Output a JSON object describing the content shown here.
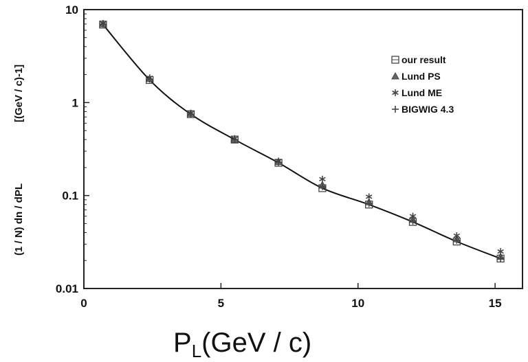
{
  "chart_data": {
    "type": "line",
    "title": "",
    "xlabel_main": "P",
    "xlabel_sub": "L",
    "xlabel_rest": "(GeV / c)",
    "ylabel_left": "(1 / N) dn / dPL",
    "ylabel_right": "[(GeV / c)-1]",
    "xlim": [
      0,
      16
    ],
    "ylim": [
      0.01,
      10
    ],
    "yscale": "log",
    "x_ticks": [
      0,
      5,
      10,
      15
    ],
    "x_tick_labels": [
      "0",
      "5",
      "10",
      "15"
    ],
    "y_ticks": [
      0.01,
      0.1,
      1,
      10
    ],
    "y_tick_labels": [
      "0.01",
      "0.1",
      "1",
      "10"
    ],
    "grid": false,
    "legend_position": "top-right",
    "series": [
      {
        "name": "our result",
        "marker": "square-cross",
        "x": [
          0.7,
          2.4,
          3.9,
          5.5,
          7.1,
          8.7,
          10.4,
          12.0,
          13.6,
          15.2
        ],
        "y": [
          6.9,
          1.75,
          0.75,
          0.4,
          0.225,
          0.12,
          0.08,
          0.052,
          0.032,
          0.021
        ]
      },
      {
        "name": "Lund PS",
        "marker": "triangle",
        "x": [
          0.7,
          2.4,
          3.9,
          5.5,
          7.1,
          8.7,
          10.4,
          12.0,
          13.6,
          15.2
        ],
        "y": [
          7.0,
          1.8,
          0.76,
          0.4,
          0.23,
          0.13,
          0.085,
          0.055,
          0.034,
          0.022
        ]
      },
      {
        "name": "Lund ME",
        "marker": "star",
        "x": [
          0.7,
          2.4,
          3.9,
          5.5,
          7.1,
          8.7,
          10.4,
          12.0,
          13.6,
          15.2
        ],
        "y": [
          7.1,
          1.85,
          0.77,
          0.41,
          0.235,
          0.15,
          0.097,
          0.06,
          0.037,
          0.025
        ]
      },
      {
        "name": "BIGWIG 4.3",
        "marker": "plus",
        "x": [
          0.7,
          2.4,
          3.9,
          5.5,
          7.1,
          8.7,
          10.4,
          12.0,
          13.6,
          15.2
        ],
        "y": [
          7.0,
          1.78,
          0.75,
          0.4,
          0.228,
          0.125,
          0.082,
          0.053,
          0.033,
          0.021
        ]
      }
    ],
    "curve": {
      "x": [
        0.7,
        2.4,
        3.9,
        5.5,
        7.1,
        8.7,
        10.4,
        12.0,
        13.6,
        15.2
      ],
      "y": [
        6.9,
        1.75,
        0.75,
        0.4,
        0.225,
        0.12,
        0.08,
        0.052,
        0.032,
        0.021
      ]
    }
  }
}
